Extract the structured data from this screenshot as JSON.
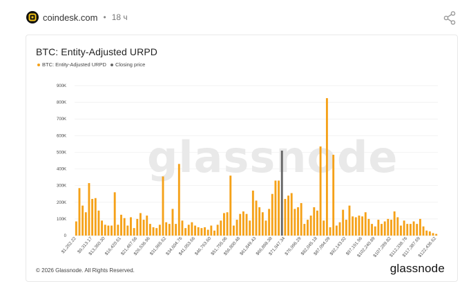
{
  "header": {
    "source": "coindesk.com",
    "separator": "•",
    "time_ago": "18 ч"
  },
  "card": {
    "footer_copyright": "© 2026 Glassnode. All Rights Reserved.",
    "footer_brand": "glassnode",
    "watermark": "glassnode"
  },
  "colors": {
    "bar": "#f5a118",
    "closing_price": "#666666"
  },
  "chart_data": {
    "type": "bar",
    "title": "BTC: Entity-Adjusted URPD",
    "legend": [
      "BTC: Entity-Adjusted URPD",
      "Closing price"
    ],
    "legend_position": "top-left",
    "grid": true,
    "ylim": [
      0,
      900000
    ],
    "yticks": [
      "0",
      "100K",
      "200K",
      "300K",
      "400K",
      "500K",
      "600K",
      "700K",
      "800K",
      "900K"
    ],
    "xtick_labels": [
      "$1,262.22",
      "$9,313.17",
      "$13,360.30",
      "$16,420.61",
      "$21,467.56",
      "$26,536.96",
      "$31,965.62",
      "$34,604.76",
      "$41,053.66",
      "$46,763.60",
      "$51,755.06",
      "$56,800.48",
      "$61,849.43",
      "$66,898.38",
      "$71,947.34",
      "$76,996.29",
      "$82,045.18",
      "$87,094.09",
      "$92,143.02",
      "$97,191.96",
      "$102,240.89",
      "$107,289.82",
      "$112,338.76",
      "$117,387.69",
      "$122,436.62"
    ],
    "closing_price_index": 64,
    "values": [
      85000,
      285000,
      180000,
      140000,
      315000,
      220000,
      225000,
      150000,
      90000,
      65000,
      60000,
      60000,
      260000,
      65000,
      125000,
      105000,
      60000,
      110000,
      45000,
      100000,
      135000,
      95000,
      120000,
      70000,
      50000,
      45000,
      65000,
      355000,
      80000,
      70000,
      160000,
      70000,
      430000,
      90000,
      45000,
      65000,
      80000,
      60000,
      50000,
      45000,
      50000,
      35000,
      60000,
      30000,
      65000,
      90000,
      135000,
      140000,
      360000,
      60000,
      95000,
      130000,
      145000,
      130000,
      90000,
      270000,
      210000,
      170000,
      140000,
      90000,
      160000,
      250000,
      330000,
      330000,
      510000,
      220000,
      240000,
      255000,
      160000,
      170000,
      195000,
      70000,
      95000,
      120000,
      170000,
      150000,
      535000,
      90000,
      825000,
      50000,
      485000,
      60000,
      80000,
      155000,
      95000,
      180000,
      115000,
      110000,
      120000,
      115000,
      140000,
      100000,
      70000,
      55000,
      95000,
      70000,
      85000,
      100000,
      95000,
      145000,
      110000,
      60000,
      90000,
      70000,
      70000,
      85000,
      70000,
      100000,
      55000,
      30000,
      25000,
      15000,
      10000
    ]
  }
}
